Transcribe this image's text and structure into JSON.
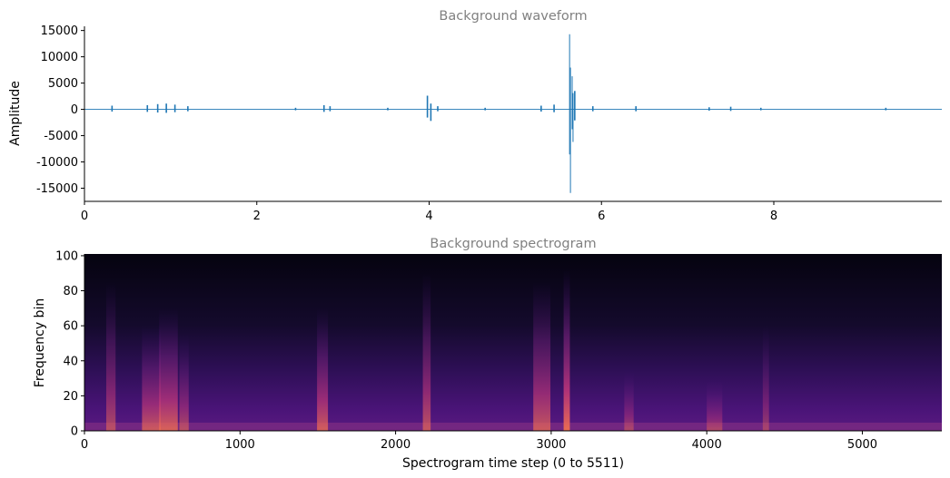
{
  "chart_data": [
    {
      "type": "line",
      "title": "Background waveform",
      "xlabel": "",
      "ylabel": "Amplitude",
      "xlim": [
        0,
        9.95
      ],
      "ylim": [
        -17500,
        15800
      ],
      "x_ticks": [
        0,
        2,
        4,
        6,
        8
      ],
      "y_ticks": [
        15000,
        10000,
        5000,
        0,
        -5000,
        -10000,
        -15000
      ],
      "grid": false,
      "line_color": "#1f77b4",
      "envelope": [
        {
          "x": 0.32,
          "y": 700
        },
        {
          "x": 0.73,
          "y": 800
        },
        {
          "x": 0.85,
          "y": 1000
        },
        {
          "x": 0.95,
          "y": 1100
        },
        {
          "x": 1.05,
          "y": 900
        },
        {
          "x": 1.2,
          "y": 600
        },
        {
          "x": 2.45,
          "y": 300
        },
        {
          "x": 2.78,
          "y": 800
        },
        {
          "x": 2.85,
          "y": 600
        },
        {
          "x": 3.52,
          "y": 300
        },
        {
          "x": 3.98,
          "y": 2600
        },
        {
          "x": 4.02,
          "y": -2200
        },
        {
          "x": 4.1,
          "y": 600
        },
        {
          "x": 4.65,
          "y": 300
        },
        {
          "x": 5.3,
          "y": 700
        },
        {
          "x": 5.45,
          "y": 900
        },
        {
          "x": 5.63,
          "y": 14300
        },
        {
          "x": 5.64,
          "y": -15900
        },
        {
          "x": 5.66,
          "y": 6300
        },
        {
          "x": 5.67,
          "y": -6200
        },
        {
          "x": 5.69,
          "y": 3500
        },
        {
          "x": 5.9,
          "y": 600
        },
        {
          "x": 6.4,
          "y": 600
        },
        {
          "x": 7.25,
          "y": 400
        },
        {
          "x": 7.5,
          "y": 500
        },
        {
          "x": 7.85,
          "y": 300
        },
        {
          "x": 9.3,
          "y": 300
        }
      ]
    },
    {
      "type": "heatmap",
      "title": "Background spectrogram",
      "xlabel": "Spectrogram time step (0 to 5511)",
      "ylabel": "Frequency bin",
      "xlim": [
        0,
        5511
      ],
      "ylim": [
        0,
        101
      ],
      "x_ticks": [
        0,
        1000,
        2000,
        3000,
        4000,
        5000
      ],
      "y_ticks": [
        0,
        20,
        40,
        60,
        80,
        100
      ],
      "colormap": "magma",
      "events": [
        {
          "x": 170,
          "width": 60,
          "top_bin": 85,
          "intensity": 0.6
        },
        {
          "x": 430,
          "width": 120,
          "top_bin": 60,
          "intensity": 0.75
        },
        {
          "x": 540,
          "width": 120,
          "top_bin": 70,
          "intensity": 0.85
        },
        {
          "x": 640,
          "width": 60,
          "top_bin": 55,
          "intensity": 0.6
        },
        {
          "x": 1530,
          "width": 70,
          "top_bin": 70,
          "intensity": 0.8
        },
        {
          "x": 2200,
          "width": 50,
          "top_bin": 90,
          "intensity": 0.7
        },
        {
          "x": 2940,
          "width": 110,
          "top_bin": 85,
          "intensity": 0.75
        },
        {
          "x": 3100,
          "width": 40,
          "top_bin": 92,
          "intensity": 1.0
        },
        {
          "x": 3500,
          "width": 60,
          "top_bin": 35,
          "intensity": 0.5
        },
        {
          "x": 4050,
          "width": 100,
          "top_bin": 30,
          "intensity": 0.5
        },
        {
          "x": 4380,
          "width": 40,
          "top_bin": 60,
          "intensity": 0.45
        }
      ]
    }
  ]
}
